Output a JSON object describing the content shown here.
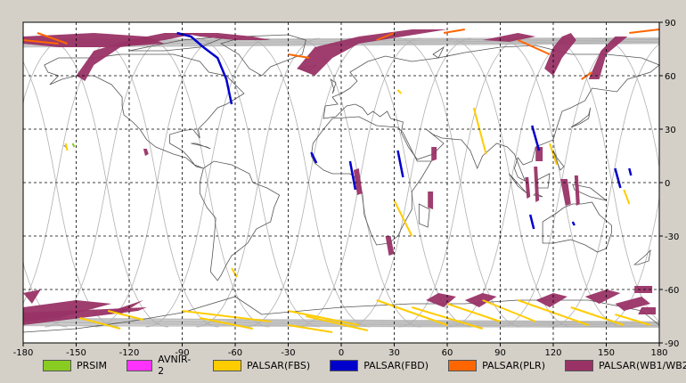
{
  "axes": {
    "x_ticks": [
      -180,
      -150,
      -120,
      -90,
      -60,
      -30,
      0,
      30,
      60,
      90,
      120,
      150,
      180
    ],
    "y_ticks": [
      90,
      60,
      30,
      0,
      -30,
      -60,
      -90
    ],
    "xlim": [
      -180,
      180
    ],
    "ylim": [
      -90,
      90
    ]
  },
  "colors": {
    "background": "#d4d0c8",
    "map_bg": "#ffffff",
    "land": "#555555",
    "orbit": "#b0b0b0",
    "grid": "#000000"
  },
  "legend": [
    {
      "label": "PRSIM",
      "color": "#88cc22"
    },
    {
      "label": "AVNIR-2",
      "color": "#ff33ff"
    },
    {
      "label": "PALSAR(FBS)",
      "color": "#ffcc00"
    },
    {
      "label": "PALSAR(FBD)",
      "color": "#0000cc"
    },
    {
      "label": "PALSAR(PLR)",
      "color": "#ff6600"
    },
    {
      "label": "PALSAR(WB1/WB2)",
      "color": "#993366"
    }
  ],
  "chart_data": {
    "type": "map",
    "swaths": {
      "wb": [
        [
          [
            -180,
            82
          ],
          [
            -140,
            84
          ],
          [
            -110,
            82
          ],
          [
            -100,
            78
          ],
          [
            -130,
            76
          ],
          [
            -160,
            76
          ],
          [
            -180,
            78
          ]
        ],
        [
          [
            -150,
            60
          ],
          [
            -140,
            74
          ],
          [
            -120,
            80
          ],
          [
            -100,
            84
          ],
          [
            -80,
            84
          ],
          [
            -100,
            80
          ],
          [
            -125,
            76
          ],
          [
            -140,
            66
          ],
          [
            -145,
            57
          ]
        ],
        [
          [
            -90,
            84
          ],
          [
            -70,
            84
          ],
          [
            -50,
            82
          ],
          [
            -40,
            80
          ],
          [
            -60,
            80
          ],
          [
            -80,
            82
          ]
        ],
        [
          [
            -25,
            64
          ],
          [
            -15,
            76
          ],
          [
            10,
            82
          ],
          [
            40,
            86
          ],
          [
            60,
            86
          ],
          [
            35,
            82
          ],
          [
            10,
            78
          ],
          [
            -5,
            70
          ],
          [
            -15,
            60
          ]
        ],
        [
          [
            80,
            80
          ],
          [
            100,
            84
          ],
          [
            110,
            82
          ],
          [
            95,
            79
          ]
        ],
        [
          [
            115,
            64
          ],
          [
            120,
            76
          ],
          [
            125,
            82
          ],
          [
            130,
            84
          ],
          [
            133,
            80
          ],
          [
            125,
            70
          ],
          [
            120,
            60
          ]
        ],
        [
          [
            140,
            58
          ],
          [
            147,
            74
          ],
          [
            155,
            82
          ],
          [
            162,
            82
          ],
          [
            150,
            72
          ],
          [
            146,
            58
          ]
        ],
        [
          [
            -180,
            -70
          ],
          [
            -150,
            -66
          ],
          [
            -130,
            -68
          ],
          [
            -160,
            -76
          ],
          [
            -180,
            -78
          ]
        ],
        [
          [
            -180,
            -73
          ],
          [
            -110,
            -70
          ],
          [
            -115,
            -72
          ],
          [
            -180,
            -80
          ]
        ],
        [
          [
            -118,
            -68
          ],
          [
            -112,
            -66
          ],
          [
            -125,
            -74
          ],
          [
            -130,
            -72
          ]
        ],
        [
          [
            -180,
            -62
          ],
          [
            -170,
            -60
          ],
          [
            -175,
            -68
          ]
        ],
        [
          [
            48,
            -66
          ],
          [
            55,
            -62
          ],
          [
            65,
            -64
          ],
          [
            58,
            -70
          ]
        ],
        [
          [
            70,
            -66
          ],
          [
            80,
            -62
          ],
          [
            88,
            -64
          ],
          [
            78,
            -70
          ]
        ],
        [
          [
            110,
            -66
          ],
          [
            120,
            -62
          ],
          [
            128,
            -64
          ],
          [
            118,
            -70
          ]
        ],
        [
          [
            138,
            -64
          ],
          [
            150,
            -60
          ],
          [
            158,
            -62
          ],
          [
            146,
            -68
          ]
        ],
        [
          [
            155,
            -68
          ],
          [
            170,
            -64
          ],
          [
            175,
            -68
          ],
          [
            160,
            -72
          ]
        ],
        [
          [
            170,
            -70
          ],
          [
            178,
            -70
          ],
          [
            178,
            -74
          ],
          [
            168,
            -74
          ]
        ],
        [
          [
            166,
            -58
          ],
          [
            176,
            -58
          ],
          [
            176,
            -62
          ],
          [
            166,
            -62
          ]
        ],
        [
          [
            -112,
            19
          ],
          [
            -110,
            19
          ],
          [
            -109,
            16
          ],
          [
            -111,
            15
          ]
        ],
        [
          [
            7,
            7
          ],
          [
            10,
            8
          ],
          [
            12,
            -6
          ],
          [
            9,
            -7
          ]
        ],
        [
          [
            25,
            -30
          ],
          [
            28,
            -30
          ],
          [
            30,
            -40
          ],
          [
            27,
            -41
          ]
        ],
        [
          [
            51,
            20
          ],
          [
            54,
            20
          ],
          [
            54,
            13
          ],
          [
            51,
            12
          ]
        ],
        [
          [
            49,
            -5
          ],
          [
            52,
            -5
          ],
          [
            52,
            -15
          ],
          [
            49,
            -14
          ]
        ],
        [
          [
            104,
            3
          ],
          [
            106,
            3
          ],
          [
            107,
            -8
          ],
          [
            105,
            -9
          ]
        ],
        [
          [
            109,
            9
          ],
          [
            111,
            9
          ],
          [
            112,
            -10
          ],
          [
            110,
            -11
          ]
        ],
        [
          [
            132,
            4
          ],
          [
            134,
            4
          ],
          [
            135,
            -12
          ],
          [
            133,
            -13
          ]
        ],
        [
          [
            124,
            2
          ],
          [
            128,
            2
          ],
          [
            130,
            -12
          ],
          [
            127,
            -13
          ]
        ],
        [
          [
            110,
            20
          ],
          [
            114,
            20
          ],
          [
            114,
            12
          ],
          [
            110,
            12
          ]
        ]
      ],
      "fbd": [
        [
          [
            -93,
            84
          ],
          [
            -85,
            82
          ],
          [
            -78,
            76
          ],
          [
            -70,
            70
          ],
          [
            -65,
            58
          ],
          [
            -62,
            44
          ]
        ],
        [
          [
            -17,
            17
          ],
          [
            -14,
            11
          ]
        ],
        [
          [
            5,
            12
          ],
          [
            8,
            -4
          ]
        ],
        [
          [
            32,
            18
          ],
          [
            35,
            3
          ]
        ],
        [
          [
            107,
            -18
          ],
          [
            109,
            -26
          ]
        ],
        [
          [
            108,
            32
          ],
          [
            112,
            18
          ]
        ],
        [
          [
            155,
            8
          ],
          [
            158,
            -3
          ]
        ],
        [
          [
            131,
            -22
          ],
          [
            132,
            -24
          ]
        ],
        [
          [
            163,
            8
          ],
          [
            164,
            4
          ]
        ]
      ],
      "fbs": [
        [
          [
            -156,
            22
          ],
          [
            -155,
            18
          ]
        ],
        [
          [
            -62,
            -48
          ],
          [
            -59,
            -53
          ]
        ],
        [
          [
            32,
            52
          ],
          [
            34,
            50
          ]
        ],
        [
          [
            75,
            42
          ],
          [
            82,
            16
          ]
        ],
        [
          [
            118,
            22
          ],
          [
            122,
            10
          ]
        ],
        [
          [
            160,
            -4
          ],
          [
            163,
            -12
          ]
        ],
        [
          [
            30,
            -10
          ],
          [
            40,
            -30
          ]
        ],
        [
          [
            -132,
            -72
          ],
          [
            -112,
            -77
          ]
        ],
        [
          [
            -148,
            -76
          ],
          [
            -125,
            -82
          ]
        ],
        [
          [
            -90,
            -72
          ],
          [
            -40,
            -78
          ]
        ],
        [
          [
            -80,
            -76
          ],
          [
            -50,
            -82
          ]
        ],
        [
          [
            -30,
            -72
          ],
          [
            10,
            -80
          ]
        ],
        [
          [
            -20,
            -75
          ],
          [
            15,
            -83
          ]
        ],
        [
          [
            -30,
            -80
          ],
          [
            -5,
            -84
          ]
        ],
        [
          [
            20,
            -66
          ],
          [
            60,
            -80
          ]
        ],
        [
          [
            40,
            -70
          ],
          [
            80,
            -82
          ]
        ],
        [
          [
            60,
            -68
          ],
          [
            90,
            -78
          ]
        ],
        [
          [
            80,
            -66
          ],
          [
            110,
            -78
          ]
        ],
        [
          [
            100,
            -66
          ],
          [
            140,
            -80
          ]
        ],
        [
          [
            130,
            -70
          ],
          [
            160,
            -80
          ]
        ],
        [
          [
            155,
            -74
          ],
          [
            175,
            -80
          ]
        ]
      ],
      "plr": [
        [
          [
            -180,
            80
          ],
          [
            -160,
            78
          ]
        ],
        [
          [
            -172,
            84
          ],
          [
            -155,
            78
          ]
        ],
        [
          [
            20,
            80
          ],
          [
            30,
            84
          ]
        ],
        [
          [
            58,
            84
          ],
          [
            70,
            86
          ]
        ],
        [
          [
            100,
            80
          ],
          [
            118,
            72
          ]
        ],
        [
          [
            136,
            58
          ],
          [
            142,
            62
          ]
        ],
        [
          [
            -30,
            72
          ],
          [
            -18,
            70
          ]
        ],
        [
          [
            163,
            84
          ],
          [
            180,
            86
          ]
        ]
      ],
      "prsim": [
        [
          [
            -152,
            22
          ],
          [
            -151,
            20
          ]
        ]
      ]
    }
  }
}
